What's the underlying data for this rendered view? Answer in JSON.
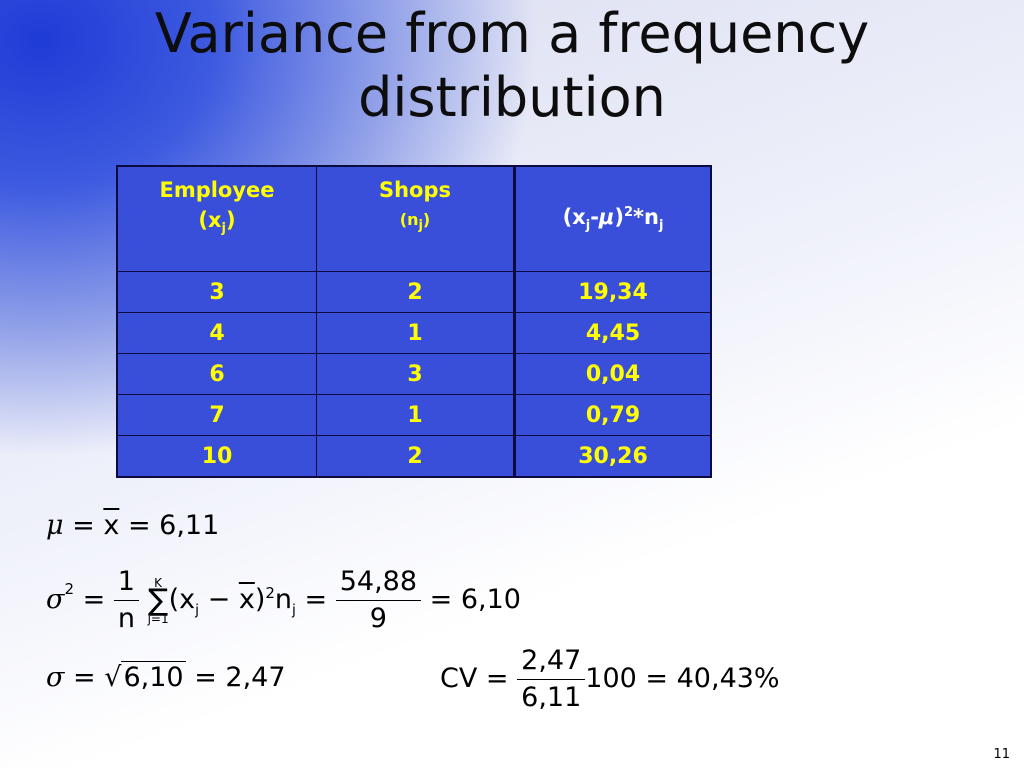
{
  "slide": {
    "title_line1": "Variance from a frequency",
    "title_line2": "distribution",
    "page_number": "11"
  },
  "table": {
    "headers": {
      "employee": "Employee",
      "employee_sym": "(x",
      "employee_sub": "j",
      "employee_close": ")",
      "shops": "Shops",
      "shops_sym": "(n",
      "shops_sub": "j",
      "shops_close": ")",
      "dev_open": "(x",
      "dev_sub": "j",
      "dev_minus": "-",
      "dev_mu": "μ",
      "dev_close": ")",
      "dev_sup": "2",
      "dev_times": "*n",
      "dev_sub2": "j"
    },
    "rows": [
      {
        "x": "3",
        "n": "2",
        "d": "19,34"
      },
      {
        "x": "4",
        "n": "1",
        "d": "4,45"
      },
      {
        "x": "6",
        "n": "3",
        "d": "0,04"
      },
      {
        "x": "7",
        "n": "1",
        "d": "0,79"
      },
      {
        "x": "10",
        "n": "2",
        "d": "30,26"
      }
    ]
  },
  "formulas": {
    "mean": {
      "mu": "μ",
      "eq1": "=",
      "xbar": "x",
      "eq2": "=",
      "value": "6,11"
    },
    "variance": {
      "sigma": "σ",
      "sup": "2",
      "eq1": "=",
      "frac_num": "1",
      "frac_den": "n",
      "sum_top": "K",
      "sum_sym": "∑",
      "sum_bottom": "j=1",
      "body_open": "(x",
      "body_sub": "j",
      "body_minus": "−",
      "body_xbar": "x",
      "body_close": ")",
      "body_sup": "2",
      "body_n": "n",
      "body_nsub": "j",
      "eq2": "=",
      "frac2_num": "54,88",
      "frac2_den": "9",
      "eq3": "=",
      "value": "6,10"
    },
    "std": {
      "sigma": "σ",
      "eq1": "=",
      "sqrt_sym": "√",
      "rad": "6,10",
      "eq2": "=",
      "value": "2,47"
    },
    "cv": {
      "label": "CV",
      "eq1": "=",
      "num": "2,47",
      "den": "6,11",
      "mult": "100",
      "eq2": "=",
      "value": "40,43%"
    }
  }
}
